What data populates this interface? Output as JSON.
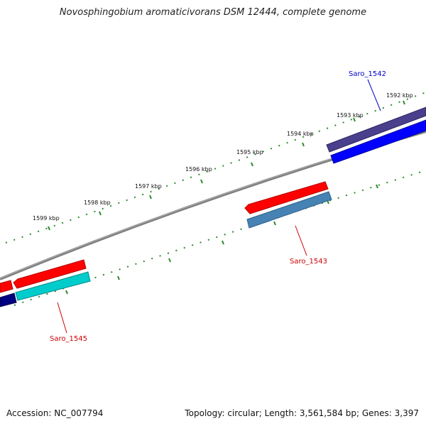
{
  "title": "Novosphingobium aromaticivorans DSM 12444, complete genome",
  "accession_line": "Accession: NC_007794",
  "topology_line": "Topology: circular; Length: 3,561,584 bp; Genes: 3,397",
  "scale_labels": [
    "1592 kbp",
    "1593 kbp",
    "1594 kbp",
    "1595 kbp",
    "1596 kbp",
    "1597 kbp",
    "1598 kbp",
    "1599 kbp"
  ],
  "gene_labels": {
    "saro_1542": "Saro_1542",
    "saro_1543": "Saro_1543",
    "saro_1545": "Saro_1545"
  },
  "colors": {
    "backbone": "#808080",
    "ticks": "#2e8b2e",
    "label_blue": "#0000cc",
    "label_red": "#cc0000",
    "gene_red": "#ff0000",
    "gene_blue": "#0000ff",
    "gene_purple": "#4a3f8c",
    "gene_steelblue": "#4682b4",
    "gene_cyan": "#00cccc",
    "gene_navy": "#000080"
  }
}
